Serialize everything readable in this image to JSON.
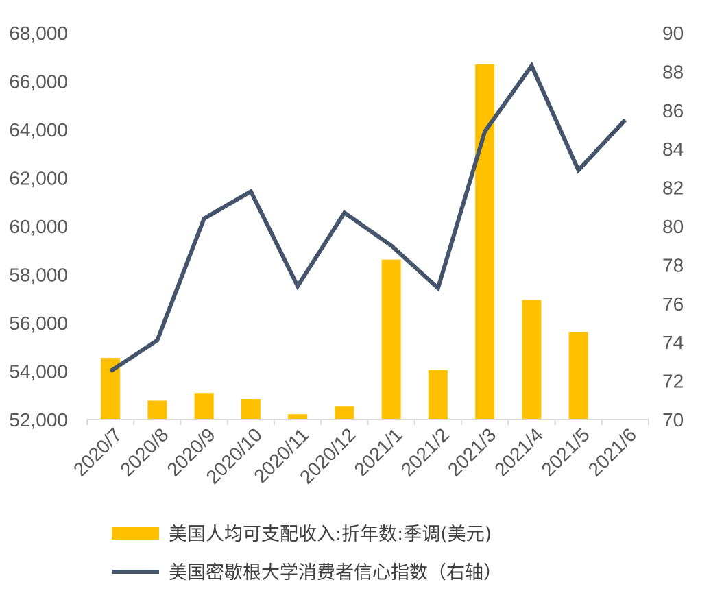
{
  "chart_data": {
    "type": "bar",
    "categories": [
      "2020/7",
      "2020/8",
      "2020/9",
      "2020/10",
      "2020/11",
      "2020/12",
      "2021/1",
      "2021/2",
      "2021/3",
      "2021/4",
      "2021/5",
      "2021/6"
    ],
    "series": [
      {
        "name": "美国人均可支配收入:折年数:季调(美元)",
        "type": "bar",
        "axis": "left",
        "color": "#FFC000",
        "values": [
          54550,
          52780,
          53100,
          52850,
          52220,
          52560,
          58620,
          54050,
          66700,
          56950,
          55630,
          null
        ]
      },
      {
        "name": "美国密歇根大学消费者信心指数（右轴）",
        "type": "line",
        "axis": "right",
        "color": "#44546A",
        "values": [
          72.5,
          74.1,
          80.4,
          81.8,
          76.9,
          80.7,
          79.0,
          76.8,
          84.9,
          88.3,
          82.9,
          85.5
        ]
      }
    ],
    "y_left": {
      "lim": [
        52000,
        68000
      ],
      "ticks": [
        "52,000",
        "54,000",
        "56,000",
        "58,000",
        "60,000",
        "62,000",
        "64,000",
        "66,000",
        "68,000"
      ]
    },
    "y_right": {
      "lim": [
        70,
        90
      ],
      "ticks": [
        "70",
        "72",
        "74",
        "76",
        "78",
        "80",
        "82",
        "84",
        "86",
        "88",
        "90"
      ]
    },
    "legend_position": "bottom",
    "grid": false
  }
}
